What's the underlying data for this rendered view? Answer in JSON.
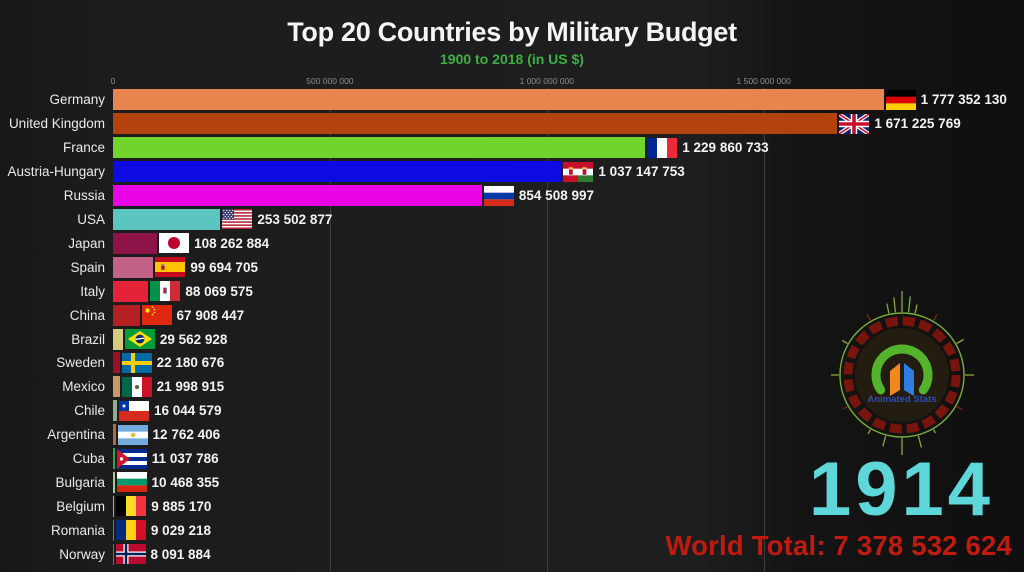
{
  "watermark": {
    "text": "Animated Stats"
  },
  "colors": {
    "background": "#1c1c1c",
    "title": "#f5f5f5",
    "subtitle_green": "#3cb043",
    "year_cyan": "#5dd7da",
    "world_total_red": "#bf1b11",
    "gridline": "#3e3e3e",
    "axis_label": "#8f8f8f"
  },
  "chart_data": {
    "type": "bar",
    "orientation": "horizontal",
    "title": "Top 20 Countries by Military Budget",
    "subtitle": "1900 to 2018 (in US $)",
    "year_label": "1914",
    "world_total_label": "World Total: 7 378 532 624",
    "world_total_value": 7378532624,
    "xlim": [
      0,
      2100000000
    ],
    "grid": true,
    "axis_ticks": [
      {
        "value": 0,
        "label": "0"
      },
      {
        "value": 500000000,
        "label": "500 000 000"
      },
      {
        "value": 1000000000,
        "label": "1 000 000 000"
      },
      {
        "value": 1500000000,
        "label": "1 500 000 000"
      }
    ],
    "categories": [
      "Germany",
      "United Kingdom",
      "France",
      "Austria-Hungary",
      "Russia",
      "USA",
      "Japan",
      "Spain",
      "Italy",
      "China",
      "Brazil",
      "Sweden",
      "Mexico",
      "Chile",
      "Argentina",
      "Cuba",
      "Bulgaria",
      "Belgium",
      "Romania",
      "Norway"
    ],
    "values": [
      1777352130,
      1671225769,
      1229860733,
      1037147753,
      854508997,
      253502877,
      108262884,
      99694705,
      88069575,
      67908447,
      29562928,
      22180676,
      21998915,
      16044579,
      12762406,
      11037786,
      10468355,
      9885170,
      9029218,
      8091884
    ],
    "value_labels": [
      "1 777 352 130",
      "1 671 225 769",
      "1 229 860 733",
      "1 037 147 753",
      "854 508 997",
      "253 502 877",
      "108 262 884",
      "99 694 705",
      "88 069 575",
      "67 908 447",
      "29 562 928",
      "22 180 676",
      "21 998 915",
      "16 044 579",
      "12 762 406",
      "11 037 786",
      "10 468 355",
      "9 885 170",
      "9 029 218",
      "8 091 884"
    ],
    "bar_colors": [
      "#e8854e",
      "#b2430e",
      "#70d42d",
      "#0d0be2",
      "#e903e6",
      "#5cc5c0",
      "#8e1348",
      "#c26287",
      "#e42339",
      "#b42022",
      "#d6cc7e",
      "#9c1028",
      "#ca9963",
      "#92ac8c",
      "#ae6b3e",
      "#31a051",
      "#a6c897",
      "#b0a878",
      "#c2409e",
      "#9a4ad0"
    ],
    "flags": [
      "de",
      "gb",
      "fr",
      "athu",
      "ru",
      "us",
      "jp",
      "es",
      "it",
      "cn",
      "br",
      "se",
      "mx",
      "cl",
      "ar",
      "cu",
      "bgr",
      "be",
      "ro",
      "no"
    ]
  }
}
